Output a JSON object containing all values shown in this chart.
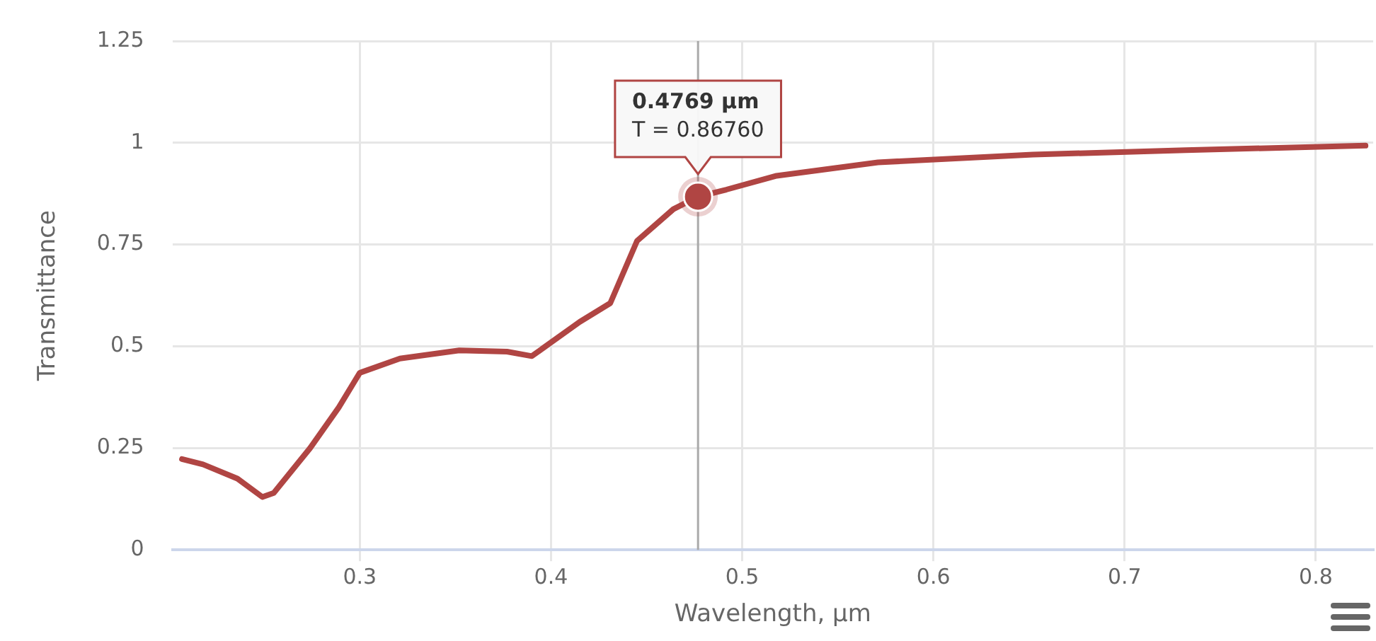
{
  "chart_data": {
    "type": "line",
    "xlabel": "Wavelength, µm",
    "ylabel": "Transmittance",
    "x": [
      0.207,
      0.218,
      0.236,
      0.249,
      0.255,
      0.274,
      0.289,
      0.3,
      0.321,
      0.352,
      0.377,
      0.39,
      0.415,
      0.431,
      0.445,
      0.464,
      0.4769,
      0.4917,
      0.518,
      0.571,
      0.652,
      0.732,
      0.826
    ],
    "series": [
      {
        "color": "#b04543",
        "values": [
          0.223,
          0.21,
          0.175,
          0.13,
          0.14,
          0.25,
          0.35,
          0.435,
          0.47,
          0.49,
          0.487,
          0.476,
          0.56,
          0.606,
          0.759,
          0.837,
          0.8676,
          0.885,
          0.919,
          0.952,
          0.971,
          0.982,
          0.993
        ]
      }
    ],
    "xlim": [
      0.202,
      0.83
    ],
    "xticks": [
      0.3,
      0.4,
      0.5,
      0.6,
      0.7,
      0.8
    ],
    "ylim": [
      0,
      1.25
    ],
    "yticks": [
      0,
      0.25,
      0.5,
      0.75,
      1,
      1.25
    ],
    "grid": true,
    "legend": false,
    "marker": "none",
    "line_style": "solid",
    "ref_lines": [
      {
        "axis": "x",
        "value": 0.4769,
        "color": "#aaaaaa"
      }
    ],
    "annotations": [
      {
        "text": "0.4769 µm\nT = 0.86760",
        "x": 0.4769,
        "y": 0.8676
      }
    ]
  }
}
